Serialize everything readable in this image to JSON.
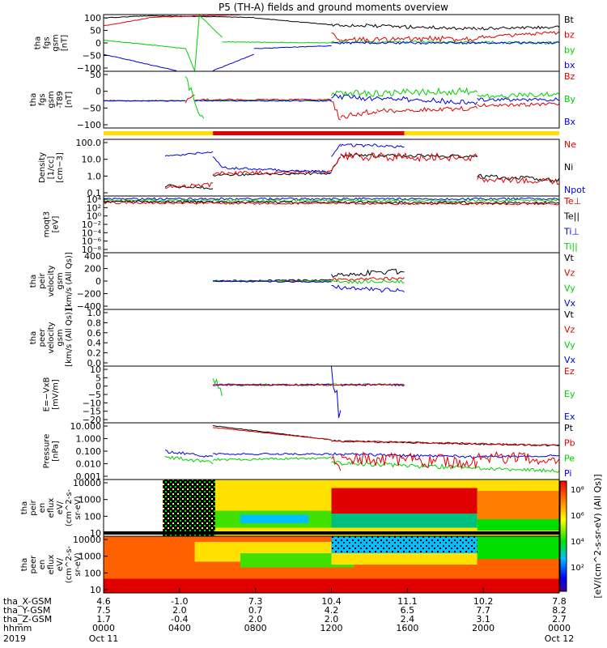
{
  "chart_data": {
    "type": "line",
    "title": "P5 (TH-A) fields and ground moments overview",
    "x": {
      "ticks_hhmm": [
        "0000",
        "0400",
        "0800",
        "1200",
        "1600",
        "2000",
        "0000"
      ],
      "year": "2019",
      "date_start": "Oct 11",
      "date_end": "Oct 12",
      "row_labels": [
        "tha_X-GSM",
        "tha_Y-GSM",
        "tha_Z-GSM",
        "hhmm"
      ],
      "x_gsm": [
        "4.6",
        "-1.0",
        "7.3",
        "10.4",
        "11.1",
        "10.2",
        "7.8"
      ],
      "y_gsm": [
        "7.5",
        "2.0",
        "0.7",
        "4.2",
        "6.5",
        "7.7",
        "8.2"
      ],
      "z_gsm": [
        "1.7",
        "-0.4",
        "2.0",
        "2.0",
        "2.4",
        "3.1",
        "2.7"
      ]
    },
    "panels": [
      {
        "ylabel": [
          "tha",
          "fgs",
          "gsm",
          "[nT]"
        ],
        "yticks": [
          "100",
          "50",
          "0",
          "−50",
          "−100"
        ],
        "series": [
          {
            "name": "Bt",
            "color": "#000000"
          },
          {
            "name": "bz",
            "color": "#e00000"
          },
          {
            "name": "by",
            "color": "#00d000"
          },
          {
            "name": "bx",
            "color": "#0000e0"
          }
        ]
      },
      {
        "ylabel": [
          "tha",
          "fgs",
          "gsm",
          "-T89",
          "[nT]"
        ],
        "yticks": [
          "50",
          "0",
          "−50",
          "−100"
        ],
        "series": [
          {
            "name": "Bz",
            "color": "#e00000"
          },
          {
            "name": "By",
            "color": "#00d000"
          },
          {
            "name": "Bx",
            "color": "#0000e0"
          }
        ]
      },
      {
        "ylabel": [
          "Density",
          "[1/cc]",
          "[cm−3]"
        ],
        "yticks": [
          "100.0",
          "10.0",
          "1.0",
          "0.1"
        ],
        "series": [
          {
            "name": "Ne",
            "color": "#e00000"
          },
          {
            "name": "Ni",
            "color": "#000000"
          },
          {
            "name": "Npot",
            "color": "#0000e0"
          }
        ]
      },
      {
        "ylabel": [
          "moqt3",
          "[eV]"
        ],
        "yticks": [
          "10⁴",
          "10²",
          "10⁰",
          "10⁻²",
          "10⁻⁴",
          "10⁻⁶",
          "10⁻⁸"
        ],
        "series": [
          {
            "name": "Te⊥",
            "color": "#e00000"
          },
          {
            "name": "Te||",
            "color": "#000000"
          },
          {
            "name": "Ti⊥",
            "color": "#0000e0"
          },
          {
            "name": "Ti||",
            "color": "#00d000"
          }
        ]
      },
      {
        "ylabel": [
          "tha",
          "peir",
          "velocity",
          "gsm",
          "[km/s (All Qs)]"
        ],
        "yticks": [
          "400",
          "200",
          "0",
          "−200",
          "−400"
        ],
        "series": [
          {
            "name": "Vt",
            "color": "#000000"
          },
          {
            "name": "Vz",
            "color": "#e00000"
          },
          {
            "name": "Vy",
            "color": "#00d000"
          },
          {
            "name": "Vx",
            "color": "#0000e0"
          }
        ]
      },
      {
        "ylabel": [
          "tha",
          "peer",
          "velocity",
          "gsm",
          "[km/s (All Qs)]"
        ],
        "yticks": [
          "1.0",
          "0.8",
          "0.6",
          "0.4",
          "0.2",
          "0.0"
        ],
        "series": [
          {
            "name": "Vt",
            "color": "#000000"
          },
          {
            "name": "Vz",
            "color": "#e00000"
          },
          {
            "name": "Vy",
            "color": "#00d000"
          },
          {
            "name": "Vx",
            "color": "#0000e0"
          }
        ]
      },
      {
        "ylabel": [
          "E=−VxB",
          "[mV/m]"
        ],
        "yticks": [
          "10",
          "5",
          "0",
          "−5",
          "−10",
          "−15",
          "−20"
        ],
        "series": [
          {
            "name": "Ez",
            "color": "#e00000"
          },
          {
            "name": "Ey",
            "color": "#00d000"
          },
          {
            "name": "Ex",
            "color": "#0000e0"
          }
        ]
      },
      {
        "ylabel": [
          "Pressure",
          "[nPa]"
        ],
        "yticks": [
          "10.000",
          "1.000",
          "0.100",
          "0.010",
          "0.001"
        ],
        "series": [
          {
            "name": "Pt",
            "color": "#000000"
          },
          {
            "name": "Pb",
            "color": "#e00000"
          },
          {
            "name": "Pe",
            "color": "#00d000"
          },
          {
            "name": "Pi",
            "color": "#0000e0"
          }
        ]
      },
      {
        "ylabel": [
          "tha",
          "peir",
          "en",
          "eflux",
          "eV/",
          "(cm^2-s-",
          "sr-eV)"
        ],
        "yticks": [
          "10000",
          "1000",
          "100",
          "10"
        ]
      },
      {
        "ylabel": [
          "tha",
          "peer",
          "en",
          "eflux",
          "eV/",
          "(cm^2-s-",
          "sr-eV)"
        ],
        "yticks": [
          "10000",
          "1000",
          "100",
          "10"
        ]
      }
    ],
    "colorbar": {
      "label": "[eV/(cm^2-s-sr-eV) (All Qs)]",
      "ticks": [
        "10⁸",
        "10⁶",
        "10⁴",
        "10²"
      ]
    }
  }
}
